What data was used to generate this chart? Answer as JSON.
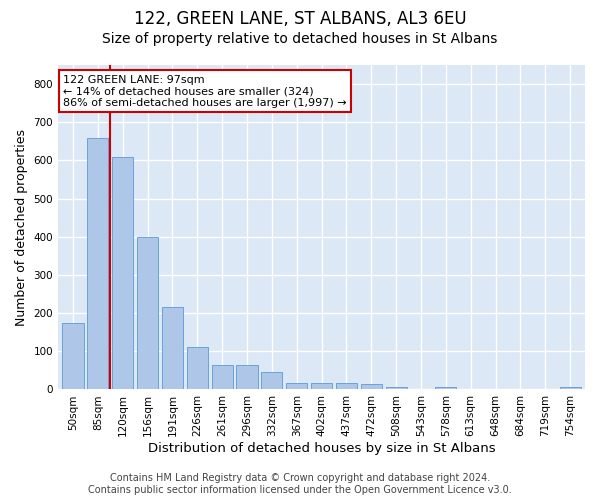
{
  "title": "122, GREEN LANE, ST ALBANS, AL3 6EU",
  "subtitle": "Size of property relative to detached houses in St Albans",
  "xlabel": "Distribution of detached houses by size in St Albans",
  "ylabel": "Number of detached properties",
  "categories": [
    "50sqm",
    "85sqm",
    "120sqm",
    "156sqm",
    "191sqm",
    "226sqm",
    "261sqm",
    "296sqm",
    "332sqm",
    "367sqm",
    "402sqm",
    "437sqm",
    "472sqm",
    "508sqm",
    "543sqm",
    "578sqm",
    "613sqm",
    "648sqm",
    "684sqm",
    "719sqm",
    "754sqm"
  ],
  "values": [
    175,
    660,
    610,
    400,
    215,
    110,
    63,
    63,
    45,
    18,
    17,
    17,
    14,
    7,
    0,
    7,
    0,
    0,
    0,
    0,
    7
  ],
  "bar_color": "#aec6e8",
  "bar_edge_color": "#5b9bd5",
  "vline_x": 1.5,
  "vline_color": "#cc0000",
  "annotation_text": "122 GREEN LANE: 97sqm\n← 14% of detached houses are smaller (324)\n86% of semi-detached houses are larger (1,997) →",
  "annotation_box_color": "white",
  "annotation_box_edge_color": "#cc0000",
  "ylim": [
    0,
    850
  ],
  "yticks": [
    0,
    100,
    200,
    300,
    400,
    500,
    600,
    700,
    800
  ],
  "bg_color": "#dce8f5",
  "grid_color": "white",
  "footer": "Contains HM Land Registry data © Crown copyright and database right 2024.\nContains public sector information licensed under the Open Government Licence v3.0.",
  "title_fontsize": 12,
  "subtitle_fontsize": 10,
  "xlabel_fontsize": 9.5,
  "ylabel_fontsize": 9,
  "tick_fontsize": 7.5,
  "annotation_fontsize": 8,
  "footer_fontsize": 7
}
